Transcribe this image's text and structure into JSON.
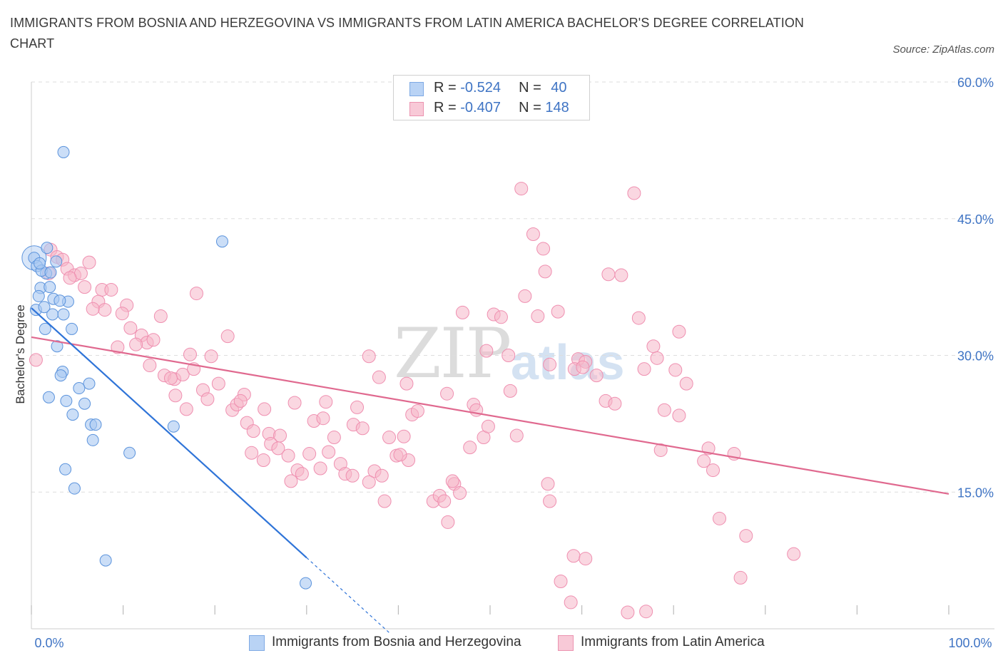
{
  "title": "IMMIGRANTS FROM BOSNIA AND HERZEGOVINA VS IMMIGRANTS FROM LATIN AMERICA BACHELOR'S DEGREE CORRELATION CHART",
  "source": "Source: ZipAtlas.com",
  "watermark": {
    "part1": "ZIP",
    "part2": "atlas"
  },
  "stats": [
    {
      "r_label": "R =",
      "r_value": "-0.524",
      "n_label": "N =",
      "n_value": "40",
      "color": "#a9c8f2"
    },
    {
      "r_label": "R =",
      "r_value": "-0.407",
      "n_label": "N =",
      "n_value": "148",
      "color": "#f5b6c9"
    }
  ],
  "legend": [
    {
      "label": "Immigrants from Bosnia and Herzegovina",
      "color": "#a9c8f2"
    },
    {
      "label": "Immigrants from Latin America",
      "color": "#f5b6c9"
    }
  ],
  "colors": {
    "blue": "#5b93dc",
    "blue_line": "#2f74d8",
    "pink": "#ef8fb0",
    "pink_line": "#e0698f",
    "axis_label": "#3f74c4"
  },
  "chart_data": {
    "type": "scatter",
    "xlabel": "",
    "ylabel": "Bachelor's Degree",
    "xlim": [
      0,
      100
    ],
    "ylim": [
      0,
      60
    ],
    "x_tick_labels": [
      "0.0%",
      "100.0%"
    ],
    "y_ticks": [
      15,
      30,
      45,
      60
    ],
    "y_tick_labels": [
      "15.0%",
      "30.0%",
      "45.0%",
      "60.0%"
    ],
    "grid": "horizontal dashed",
    "legend_position": "bottom",
    "series": [
      {
        "name": "Immigrants from Bosnia and Herzegovina",
        "color": "#a9c8f2",
        "trend": {
          "x0": 0,
          "y0": 35.2,
          "x1": 30.0,
          "y1": 7.8,
          "dashed_to_x": 39.0
        },
        "points": [
          [
            0.3,
            40.7
          ],
          [
            0.6,
            39.8
          ],
          [
            1.0,
            37.4
          ],
          [
            0.8,
            36.5
          ],
          [
            0.5,
            35.0
          ],
          [
            1.7,
            41.8
          ],
          [
            2.7,
            40.3
          ],
          [
            1.6,
            39.0
          ],
          [
            2.0,
            37.5
          ],
          [
            2.4,
            36.2
          ],
          [
            3.5,
            52.3
          ],
          [
            2.3,
            34.5
          ],
          [
            3.5,
            34.5
          ],
          [
            4.0,
            35.9
          ],
          [
            1.5,
            32.9
          ],
          [
            4.4,
            32.9
          ],
          [
            2.8,
            31.0
          ],
          [
            3.4,
            28.2
          ],
          [
            3.2,
            27.8
          ],
          [
            6.3,
            26.9
          ],
          [
            5.2,
            26.4
          ],
          [
            1.9,
            25.4
          ],
          [
            3.8,
            25.0
          ],
          [
            5.8,
            24.7
          ],
          [
            4.5,
            23.5
          ],
          [
            6.5,
            22.4
          ],
          [
            7.0,
            22.4
          ],
          [
            6.7,
            20.7
          ],
          [
            10.7,
            19.3
          ],
          [
            15.5,
            22.2
          ],
          [
            3.7,
            17.5
          ],
          [
            4.7,
            15.4
          ],
          [
            8.1,
            7.5
          ],
          [
            29.9,
            5.0
          ],
          [
            20.8,
            42.5
          ],
          [
            1.1,
            39.3
          ],
          [
            2.1,
            39.1
          ],
          [
            0.9,
            40.1
          ],
          [
            3.1,
            36.0
          ],
          [
            1.4,
            35.3
          ]
        ]
      },
      {
        "name": "Immigrants from Latin America",
        "color": "#f5b6c9",
        "trend": {
          "x0": 0,
          "y0": 32.0,
          "x1": 100,
          "y1": 14.8
        },
        "points": [
          [
            0.5,
            29.5
          ],
          [
            2.1,
            41.6
          ],
          [
            2.8,
            40.8
          ],
          [
            3.4,
            40.5
          ],
          [
            1.9,
            39.0
          ],
          [
            3.9,
            39.5
          ],
          [
            4.7,
            38.8
          ],
          [
            5.4,
            39.0
          ],
          [
            6.3,
            40.2
          ],
          [
            4.2,
            38.5
          ],
          [
            5.8,
            37.5
          ],
          [
            7.7,
            37.2
          ],
          [
            8.7,
            37.2
          ],
          [
            7.3,
            35.9
          ],
          [
            8.0,
            35.0
          ],
          [
            6.7,
            35.1
          ],
          [
            10.4,
            35.5
          ],
          [
            9.9,
            34.6
          ],
          [
            14.1,
            34.3
          ],
          [
            10.8,
            33.0
          ],
          [
            12.0,
            32.2
          ],
          [
            12.6,
            31.4
          ],
          [
            11.4,
            31.2
          ],
          [
            13.3,
            31.7
          ],
          [
            9.4,
            30.9
          ],
          [
            18.0,
            36.8
          ],
          [
            21.4,
            32.1
          ],
          [
            17.3,
            30.1
          ],
          [
            19.6,
            29.9
          ],
          [
            12.9,
            28.9
          ],
          [
            14.5,
            27.8
          ],
          [
            15.6,
            27.4
          ],
          [
            16.5,
            27.9
          ],
          [
            17.7,
            28.5
          ],
          [
            15.2,
            27.5
          ],
          [
            18.7,
            26.2
          ],
          [
            20.4,
            26.9
          ],
          [
            15.7,
            25.6
          ],
          [
            19.2,
            25.2
          ],
          [
            23.2,
            25.7
          ],
          [
            21.9,
            24.0
          ],
          [
            22.4,
            24.6
          ],
          [
            22.8,
            25.0
          ],
          [
            16.9,
            24.1
          ],
          [
            25.4,
            24.1
          ],
          [
            23.5,
            22.6
          ],
          [
            24.2,
            21.7
          ],
          [
            25.9,
            21.4
          ],
          [
            27.1,
            21.2
          ],
          [
            28.7,
            24.8
          ],
          [
            30.8,
            22.8
          ],
          [
            31.8,
            23.1
          ],
          [
            33.0,
            21.0
          ],
          [
            35.1,
            22.4
          ],
          [
            36.1,
            22.0
          ],
          [
            26.1,
            20.3
          ],
          [
            24.0,
            19.3
          ],
          [
            26.9,
            19.8
          ],
          [
            28.0,
            19.0
          ],
          [
            30.3,
            19.2
          ],
          [
            32.4,
            19.4
          ],
          [
            25.3,
            18.5
          ],
          [
            29.0,
            17.4
          ],
          [
            28.3,
            16.2
          ],
          [
            31.5,
            17.6
          ],
          [
            29.5,
            17.0
          ],
          [
            33.7,
            18.1
          ],
          [
            34.2,
            17.0
          ],
          [
            35.0,
            16.8
          ],
          [
            37.4,
            17.3
          ],
          [
            36.8,
            16.1
          ],
          [
            38.2,
            16.8
          ],
          [
            39.0,
            21.0
          ],
          [
            40.6,
            21.1
          ],
          [
            41.5,
            23.5
          ],
          [
            42.1,
            23.9
          ],
          [
            41.1,
            18.5
          ],
          [
            39.8,
            19.0
          ],
          [
            40.2,
            19.1
          ],
          [
            38.5,
            14.0
          ],
          [
            43.8,
            14.0
          ],
          [
            44.5,
            14.6
          ],
          [
            45.0,
            14.0
          ],
          [
            46.1,
            15.9
          ],
          [
            45.9,
            16.2
          ],
          [
            46.7,
            14.9
          ],
          [
            47.8,
            19.9
          ],
          [
            45.4,
            11.7
          ],
          [
            37.9,
            27.6
          ],
          [
            40.9,
            26.9
          ],
          [
            35.5,
            24.3
          ],
          [
            32.1,
            24.9
          ],
          [
            36.8,
            29.9
          ],
          [
            45.3,
            25.8
          ],
          [
            47.0,
            34.7
          ],
          [
            48.2,
            24.6
          ],
          [
            48.5,
            24.0
          ],
          [
            50.4,
            34.5
          ],
          [
            51.2,
            34.2
          ],
          [
            49.3,
            21.0
          ],
          [
            49.8,
            22.2
          ],
          [
            52.2,
            26.1
          ],
          [
            53.4,
            48.3
          ],
          [
            52.9,
            21.2
          ],
          [
            53.8,
            36.5
          ],
          [
            54.7,
            43.3
          ],
          [
            55.8,
            41.7
          ],
          [
            56.0,
            39.2
          ],
          [
            55.2,
            34.3
          ],
          [
            56.5,
            29.0
          ],
          [
            57.4,
            34.8
          ],
          [
            59.6,
            29.6
          ],
          [
            60.4,
            29.3
          ],
          [
            59.2,
            28.5
          ],
          [
            60.1,
            28.7
          ],
          [
            61.6,
            27.8
          ],
          [
            62.6,
            25.0
          ],
          [
            63.6,
            24.7
          ],
          [
            62.9,
            38.9
          ],
          [
            64.3,
            38.8
          ],
          [
            65.7,
            47.8
          ],
          [
            66.2,
            34.1
          ],
          [
            66.8,
            28.5
          ],
          [
            67.8,
            31.0
          ],
          [
            68.2,
            29.7
          ],
          [
            70.2,
            28.4
          ],
          [
            70.6,
            32.6
          ],
          [
            69.0,
            24.0
          ],
          [
            70.6,
            23.4
          ],
          [
            71.4,
            26.9
          ],
          [
            68.6,
            19.6
          ],
          [
            73.8,
            19.8
          ],
          [
            73.3,
            18.4
          ],
          [
            74.3,
            17.4
          ],
          [
            76.6,
            19.2
          ],
          [
            56.3,
            15.9
          ],
          [
            56.5,
            14.0
          ],
          [
            59.1,
            8.0
          ],
          [
            60.4,
            7.7
          ],
          [
            57.7,
            5.2
          ],
          [
            58.8,
            2.9
          ],
          [
            65.0,
            1.8
          ],
          [
            67.0,
            1.9
          ],
          [
            75.0,
            12.1
          ],
          [
            77.9,
            10.2
          ],
          [
            83.1,
            8.2
          ],
          [
            77.3,
            5.6
          ],
          [
            52.0,
            30.0
          ],
          [
            49.6,
            30.5
          ]
        ]
      }
    ]
  }
}
